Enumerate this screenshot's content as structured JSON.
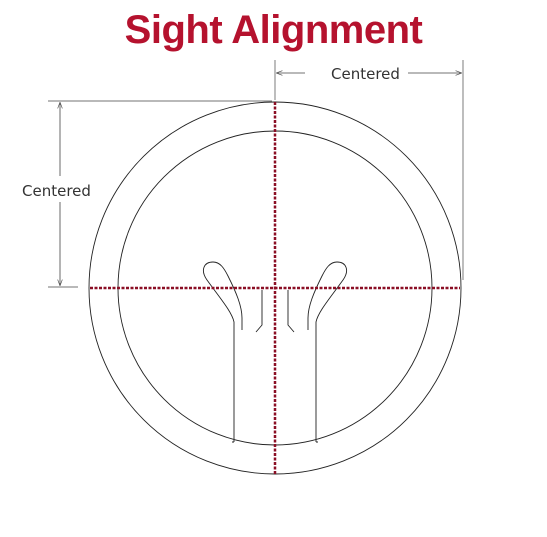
{
  "title": "Sight Alignment",
  "dimension_horizontal_label": "Centered",
  "dimension_vertical_label": "Centered",
  "colors": {
    "title": "#b5122e",
    "crosshair": "#8b0f25",
    "line": "#222222"
  }
}
